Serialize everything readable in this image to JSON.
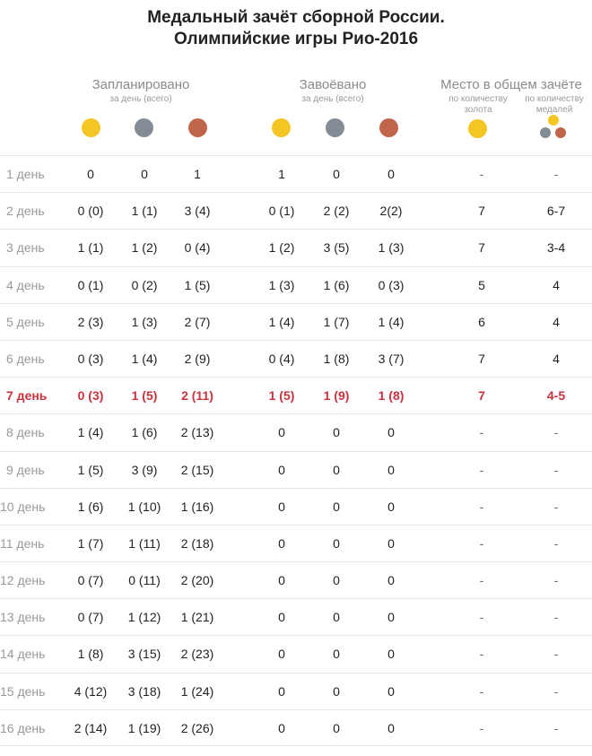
{
  "title": {
    "line1": "Медальный зачёт сборной России.",
    "line2": "Олимпийские игры Рио-2016"
  },
  "headers": {
    "planned": "Запланировано",
    "planned_sub": "за день (всего)",
    "won": "Завоёвано",
    "won_sub": "за день (всего)",
    "place": "Место в общем зачёте",
    "place_gold_sub1": "по количеству",
    "place_gold_sub2": "золота",
    "place_medals_sub1": "по количеству",
    "place_medals_sub2": "медалей"
  },
  "colors": {
    "gold": "#f5c524",
    "silver": "#838b95",
    "bronze": "#c0654a",
    "highlight": "#c8323c"
  },
  "rows": [
    {
      "day": "1 день",
      "pg": "0",
      "ps": "0",
      "pb": "1",
      "wg": "1",
      "ws": "0",
      "wb": "0",
      "gold_place": "-",
      "medal_place": "-"
    },
    {
      "day": "2 день",
      "pg": "0 (0)",
      "ps": "1 (1)",
      "pb": "3 (4)",
      "wg": "0 (1)",
      "ws": "2 (2)",
      "wb": "2(2)",
      "gold_place": "7",
      "medal_place": "6-7"
    },
    {
      "day": "3 день",
      "pg": "1 (1)",
      "ps": "1 (2)",
      "pb": "0 (4)",
      "wg": "1 (2)",
      "ws": "3 (5)",
      "wb": "1 (3)",
      "gold_place": "7",
      "medal_place": "3-4"
    },
    {
      "day": "4 день",
      "pg": "0 (1)",
      "ps": "0 (2)",
      "pb": "1 (5)",
      "wg": "1 (3)",
      "ws": "1 (6)",
      "wb": "0 (3)",
      "gold_place": "5",
      "medal_place": "4"
    },
    {
      "day": "5 день",
      "pg": "2 (3)",
      "ps": "1 (3)",
      "pb": "2 (7)",
      "wg": "1 (4)",
      "ws": "1 (7)",
      "wb": "1 (4)",
      "gold_place": "6",
      "medal_place": "4"
    },
    {
      "day": "6 день",
      "pg": "0 (3)",
      "ps": "1 (4)",
      "pb": "2 (9)",
      "wg": "0 (4)",
      "ws": "1 (8)",
      "wb": "3 (7)",
      "gold_place": "7",
      "medal_place": "4"
    },
    {
      "day": "7 день",
      "pg": "0 (3)",
      "ps": "1 (5)",
      "pb": "2 (11)",
      "wg": "1 (5)",
      "ws": "1 (9)",
      "wb": "1 (8)",
      "gold_place": "7",
      "medal_place": "4-5",
      "highlight": true
    },
    {
      "day": "8 день",
      "pg": "1 (4)",
      "ps": "1 (6)",
      "pb": "2 (13)",
      "wg": "0",
      "ws": "0",
      "wb": "0",
      "gold_place": "-",
      "medal_place": "-"
    },
    {
      "day": "9 день",
      "pg": "1 (5)",
      "ps": "3 (9)",
      "pb": "2 (15)",
      "wg": "0",
      "ws": "0",
      "wb": "0",
      "gold_place": "-",
      "medal_place": "-"
    },
    {
      "day": "10 день",
      "pg": "1 (6)",
      "ps": "1 (10)",
      "pb": "1 (16)",
      "wg": "0",
      "ws": "0",
      "wb": "0",
      "gold_place": "-",
      "medal_place": "-"
    },
    {
      "day": "11 день",
      "pg": "1 (7)",
      "ps": "1 (11)",
      "pb": "2 (18)",
      "wg": "0",
      "ws": "0",
      "wb": "0",
      "gold_place": "-",
      "medal_place": "-"
    },
    {
      "day": "12 день",
      "pg": "0 (7)",
      "ps": "0 (11)",
      "pb": "2 (20)",
      "wg": "0",
      "ws": "0",
      "wb": "0",
      "gold_place": "-",
      "medal_place": "-"
    },
    {
      "day": "13 день",
      "pg": "0 (7)",
      "ps": "1 (12)",
      "pb": "1 (21)",
      "wg": "0",
      "ws": "0",
      "wb": "0",
      "gold_place": "-",
      "medal_place": "-"
    },
    {
      "day": "14 день",
      "pg": "1 (8)",
      "ps": "3 (15)",
      "pb": "2 (23)",
      "wg": "0",
      "ws": "0",
      "wb": "0",
      "gold_place": "-",
      "medal_place": "-"
    },
    {
      "day": "15 день",
      "pg": "4 (12)",
      "ps": "3 (18)",
      "pb": "1 (24)",
      "wg": "0",
      "ws": "0",
      "wb": "0",
      "gold_place": "-",
      "medal_place": "-"
    },
    {
      "day": "16 день",
      "pg": "2 (14)",
      "ps": "1 (19)",
      "pb": "2 (26)",
      "wg": "0",
      "ws": "0",
      "wb": "0",
      "gold_place": "-",
      "medal_place": "-"
    }
  ]
}
